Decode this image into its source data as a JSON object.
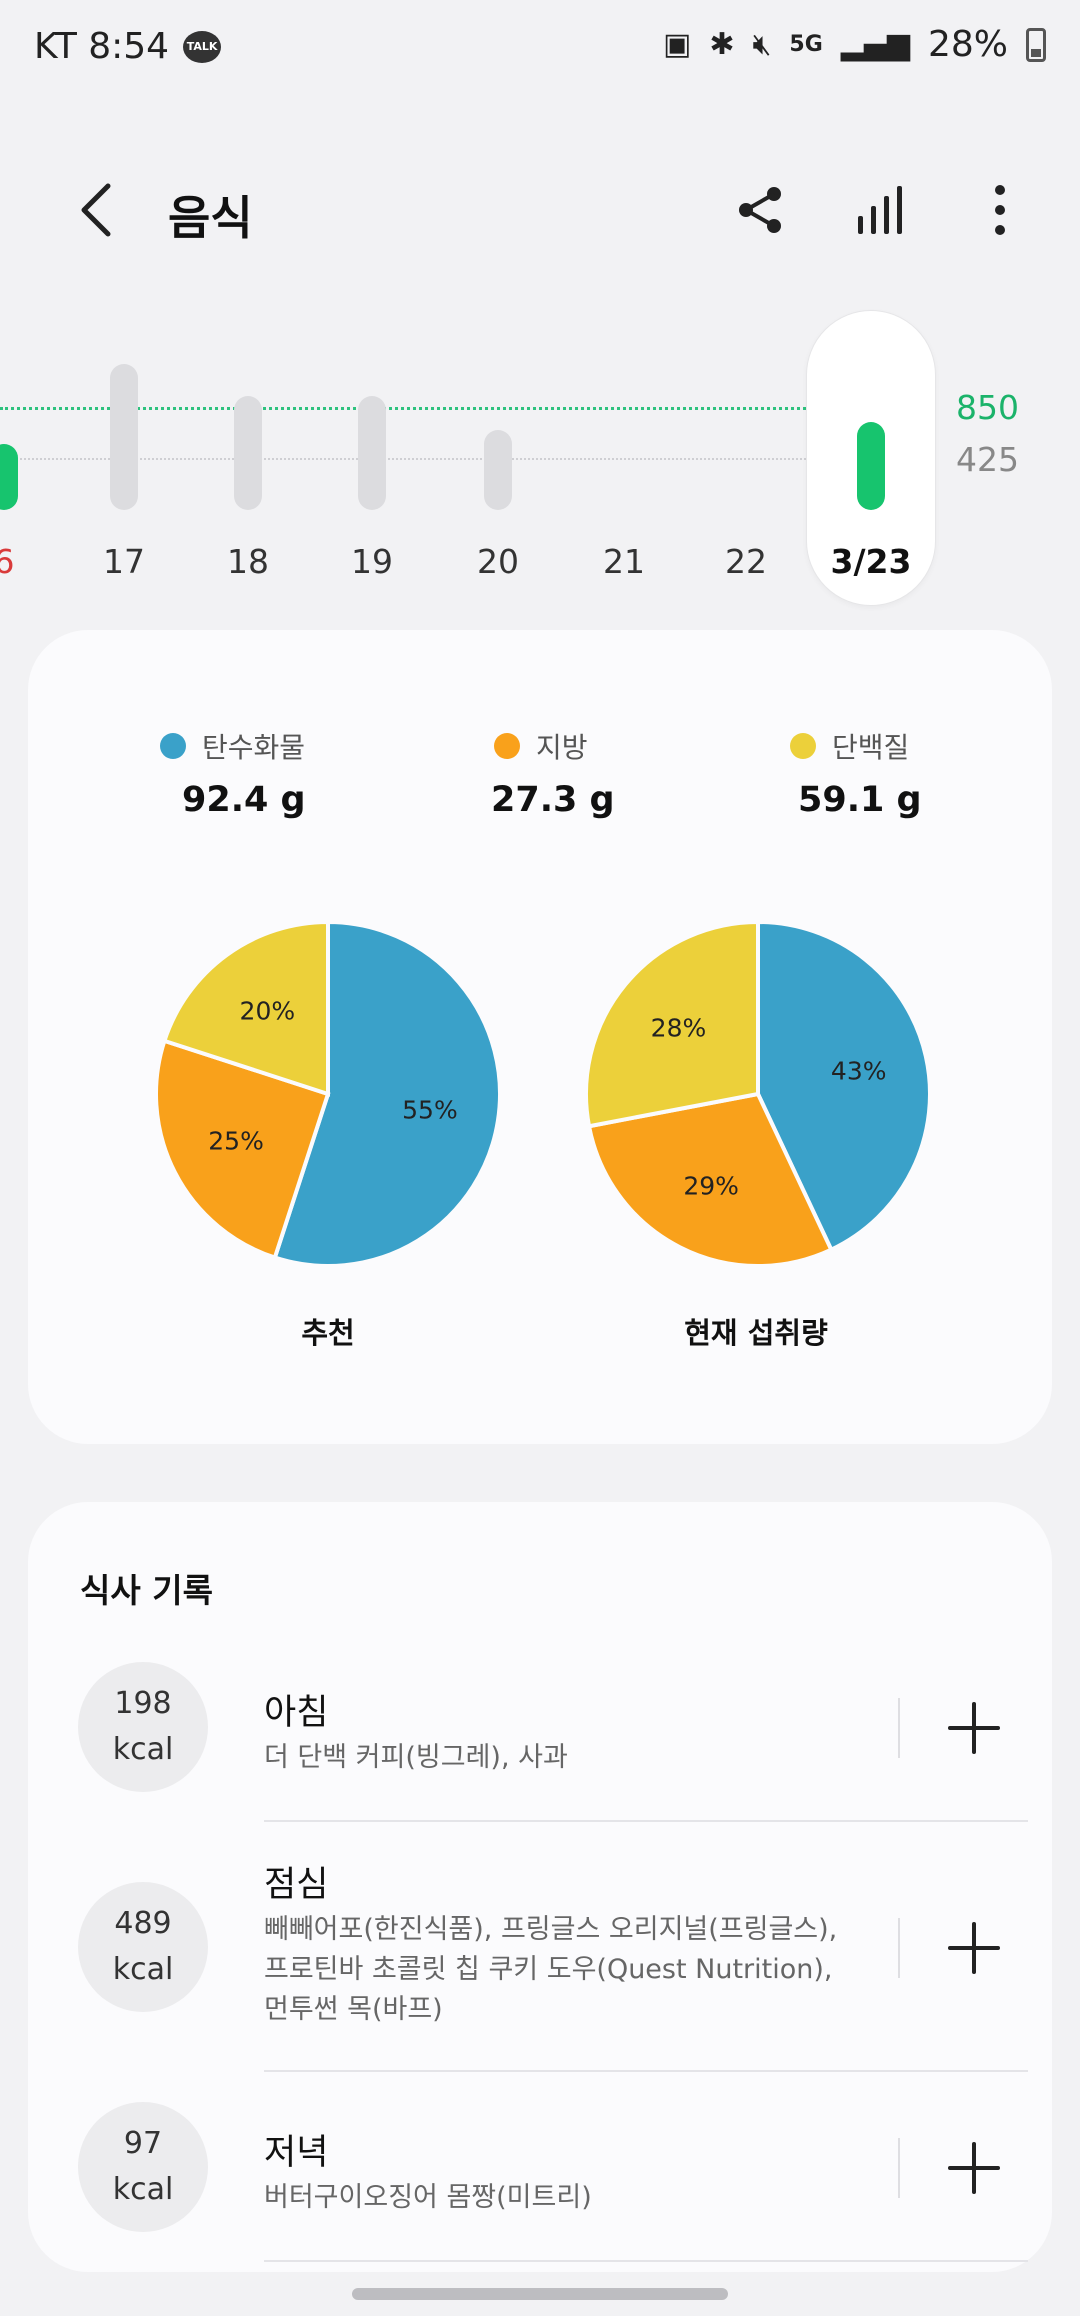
{
  "status_bar": {
    "carrier_time": "KT 8:54",
    "talk_badge": "TALK",
    "network": "5G",
    "battery": "28%"
  },
  "header": {
    "title": "음식"
  },
  "week_chart": {
    "goal_label": "850",
    "half_label": "425",
    "days": [
      {
        "label": "6",
        "value": 0.45,
        "highlight": true
      },
      {
        "label": "17",
        "value": 1.0
      },
      {
        "label": "18",
        "value": 0.78
      },
      {
        "label": "19",
        "value": 0.78
      },
      {
        "label": "20",
        "value": 0.55
      },
      {
        "label": "21",
        "value": 0
      },
      {
        "label": "22",
        "value": 0
      },
      {
        "label": "3/23",
        "value": 0.6,
        "selected": true
      }
    ]
  },
  "macros": {
    "legend": [
      {
        "name": "탄수화물",
        "value": "92.4 g",
        "color": "#3aa1c9"
      },
      {
        "name": "지방",
        "value": "27.3 g",
        "color": "#f9a11b"
      },
      {
        "name": "단백질",
        "value": "59.1 g",
        "color": "#ecd03a"
      }
    ],
    "recommended": {
      "caption": "추천",
      "slices": [
        {
          "label": "55%",
          "pct": 55,
          "color": "#3aa1c9"
        },
        {
          "label": "25%",
          "pct": 25,
          "color": "#f9a11b"
        },
        {
          "label": "20%",
          "pct": 20,
          "color": "#ecd03a"
        }
      ]
    },
    "current": {
      "caption": "현재 섭취량",
      "slices": [
        {
          "label": "43%",
          "pct": 43,
          "color": "#3aa1c9"
        },
        {
          "label": "29%",
          "pct": 29,
          "color": "#f9a11b"
        },
        {
          "label": "28%",
          "pct": 28,
          "color": "#ecd03a"
        }
      ]
    }
  },
  "meals": {
    "title": "식사 기록",
    "items": [
      {
        "kcal": "198",
        "unit": "kcal",
        "name": "아침",
        "desc": "더 단백 커피(빙그레), 사과"
      },
      {
        "kcal": "489",
        "unit": "kcal",
        "name": "점심",
        "desc": "빼빼어포(한진식품), 프링글스 오리지널(프링글스), 프로틴바 초콜릿 칩 쿠키 도우(Quest Nutrition), 먼투썬 목(바프)"
      },
      {
        "kcal": "97",
        "unit": "kcal",
        "name": "저녁",
        "desc": "버터구이오징어 몸짱(미트리)"
      }
    ]
  }
}
